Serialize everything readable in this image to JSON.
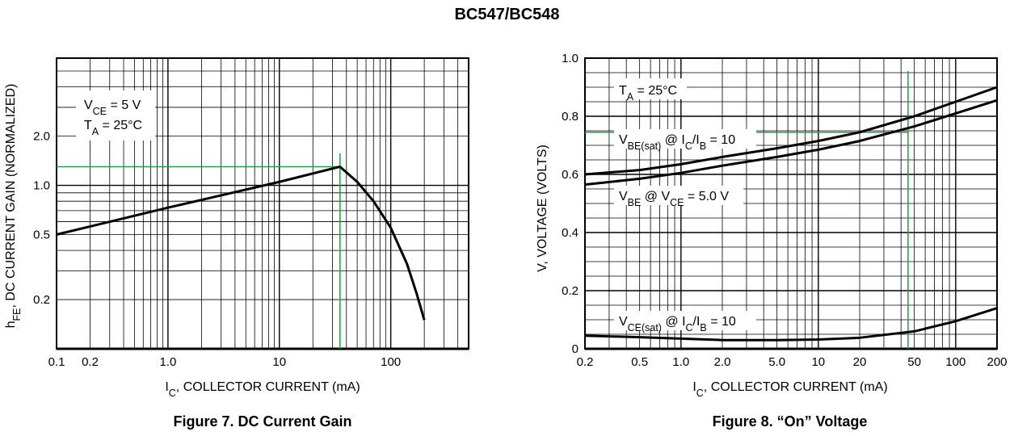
{
  "page_title": "BC547/BC548",
  "chart_data": [
    {
      "type": "line",
      "caption": "Figure 7. DC Current Gain",
      "xlabel_main": "I",
      "xlabel_sub": "C",
      "xlabel_rest": ", COLLECTOR CURRENT (mA)",
      "ylabel_main": "h",
      "ylabel_sub": "FE",
      "ylabel_rest": ", DC CURRENT GAIN (NORMALIZED)",
      "x_scale": "log",
      "y_scale": "log",
      "xlim": [
        0.1,
        500
      ],
      "ylim": [
        0.1,
        6
      ],
      "x_ticks": [
        {
          "v": 0.1,
          "label": "0.1"
        },
        {
          "v": 0.2,
          "label": "0.2"
        },
        {
          "v": 1,
          "label": "1.0"
        },
        {
          "v": 10,
          "label": "10"
        },
        {
          "v": 100,
          "label": "100"
        }
      ],
      "y_ticks": [
        {
          "v": 0.2,
          "label": "0.2"
        },
        {
          "v": 0.5,
          "label": "0.5"
        },
        {
          "v": 1.0,
          "label": "1.0"
        },
        {
          "v": 2.0,
          "label": "2.0"
        }
      ],
      "annotation": {
        "line1_main": "V",
        "line1_sub": "CE",
        "line1_rest": " = 5 V",
        "line2_main": "T",
        "line2_sub": "A",
        "line2_rest": " = 25°C"
      },
      "grid": true,
      "series": [
        {
          "x": [
            0.1,
            1,
            10,
            35,
            50,
            70,
            100,
            140,
            170,
            200
          ],
          "y": [
            0.5,
            0.73,
            1.05,
            1.3,
            1.05,
            0.8,
            0.55,
            0.33,
            0.22,
            0.15
          ]
        }
      ],
      "marker_lines": {
        "color": "#22a045",
        "x": 35,
        "y": 1.3
      }
    },
    {
      "type": "line",
      "caption": "Figure 8. “On” Voltage",
      "xlabel_main": "I",
      "xlabel_sub": "C",
      "xlabel_rest": ", COLLECTOR CURRENT (mA)",
      "ylabel": "V, VOLTAGE (VOLTS)",
      "x_scale": "log",
      "y_scale": "linear",
      "xlim": [
        0.2,
        200
      ],
      "ylim": [
        0,
        1.0
      ],
      "x_ticks": [
        {
          "v": 0.2,
          "label": "0.2"
        },
        {
          "v": 0.5,
          "label": "0.5"
        },
        {
          "v": 1,
          "label": "1.0"
        },
        {
          "v": 2,
          "label": "2.0"
        },
        {
          "v": 5,
          "label": "5.0"
        },
        {
          "v": 10,
          "label": "10"
        },
        {
          "v": 20,
          "label": "20"
        },
        {
          "v": 50,
          "label": "50"
        },
        {
          "v": 100,
          "label": "100"
        },
        {
          "v": 200,
          "label": "200"
        }
      ],
      "y_ticks": [
        {
          "v": 0,
          "label": "0"
        },
        {
          "v": 0.2,
          "label": "0.2"
        },
        {
          "v": 0.4,
          "label": "0.4"
        },
        {
          "v": 0.6,
          "label": "0.6"
        },
        {
          "v": 0.8,
          "label": "0.8"
        },
        {
          "v": 1.0,
          "label": "1.0"
        }
      ],
      "annotation": {
        "main": "T",
        "sub": "A",
        "rest": " = 25°C"
      },
      "grid": true,
      "series": [
        {
          "name_main": "V",
          "name_sub": "BE(sat)",
          "name_rest": " @ I",
          "name_sub2": "C",
          "name_rest2": "/I",
          "name_sub3": "B",
          "name_rest3": " = 10",
          "x": [
            0.2,
            0.5,
            1,
            2,
            5,
            10,
            20,
            50,
            100,
            200
          ],
          "y": [
            0.6,
            0.615,
            0.635,
            0.66,
            0.69,
            0.715,
            0.745,
            0.8,
            0.85,
            0.9
          ]
        },
        {
          "name_main": "V",
          "name_sub": "BE",
          "name_rest": " @ V",
          "name_sub2": "CE",
          "name_rest2": " = 5.0 V",
          "x": [
            0.2,
            0.5,
            1,
            2,
            5,
            10,
            20,
            50,
            100,
            200
          ],
          "y": [
            0.565,
            0.585,
            0.605,
            0.63,
            0.66,
            0.685,
            0.715,
            0.765,
            0.81,
            0.855
          ]
        },
        {
          "name_main": "V",
          "name_sub": "CE(sat)",
          "name_rest": " @ I",
          "name_sub2": "C",
          "name_rest2": "/I",
          "name_sub3": "B",
          "name_rest3": " = 10",
          "x": [
            0.2,
            0.5,
            1,
            2,
            5,
            10,
            20,
            50,
            100,
            200
          ],
          "y": [
            0.045,
            0.04,
            0.035,
            0.03,
            0.03,
            0.032,
            0.038,
            0.06,
            0.095,
            0.14
          ]
        }
      ],
      "marker_lines": {
        "color": "#22a045",
        "x": 45,
        "y": 0.745
      }
    }
  ]
}
